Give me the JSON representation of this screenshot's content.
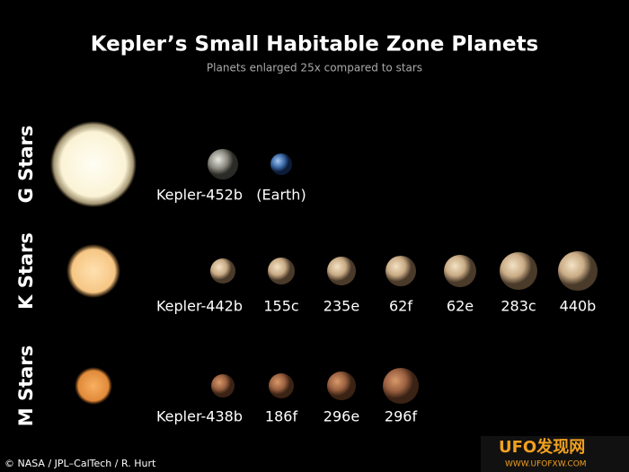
{
  "header": {
    "title": "Kepler’s Small Habitable Zone Planets",
    "subtitle": "Planets enlarged 25x compared to stars"
  },
  "rows": [
    {
      "label": "G Stars",
      "planets": [
        "Kepler-452b",
        "(Earth)"
      ]
    },
    {
      "label": "K Stars",
      "planets": [
        "Kepler-442b",
        "155c",
        "235e",
        "62f",
        "62e",
        "283c",
        "440b"
      ]
    },
    {
      "label": "M Stars",
      "planets": [
        "Kepler-438b",
        "186f",
        "296e",
        "296f"
      ]
    }
  ],
  "credit": "© NASA / JPL–CalTech / R. Hurt",
  "watermark": {
    "logo": "UFO发现网",
    "url": "WWW.UFOFXW.COM"
  }
}
